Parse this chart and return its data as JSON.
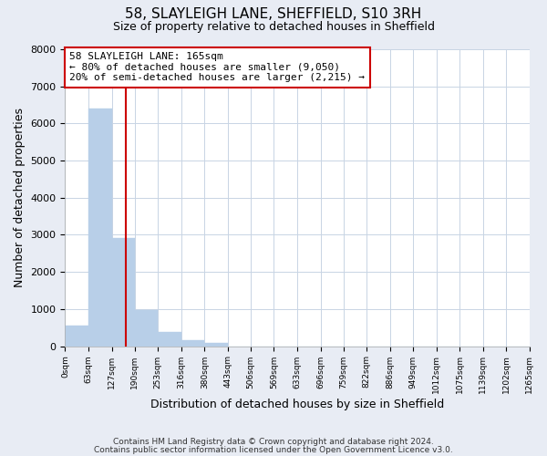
{
  "title": "58, SLAYLEIGH LANE, SHEFFIELD, S10 3RH",
  "subtitle": "Size of property relative to detached houses in Sheffield",
  "xlabel": "Distribution of detached houses by size in Sheffield",
  "ylabel": "Number of detached properties",
  "bar_edges": [
    0,
    63,
    127,
    190,
    253,
    316,
    380,
    443,
    506,
    569,
    633,
    696,
    759,
    822,
    886,
    949,
    1012,
    1075,
    1139,
    1202,
    1265
  ],
  "bar_heights": [
    550,
    6400,
    2920,
    970,
    380,
    170,
    80,
    0,
    0,
    0,
    0,
    0,
    0,
    0,
    0,
    0,
    0,
    0,
    0,
    0
  ],
  "bar_color": "#b8cfe8",
  "bar_edgecolor": "#b8cfe8",
  "property_line_x": 165,
  "property_line_color": "#cc0000",
  "annotation_line1": "58 SLAYLEIGH LANE: 165sqm",
  "annotation_line2": "← 80% of detached houses are smaller (9,050)",
  "annotation_line3": "20% of semi-detached houses are larger (2,215) →",
  "annotation_box_edgecolor": "#cc0000",
  "annotation_box_facecolor": "#ffffff",
  "ylim": [
    0,
    8000
  ],
  "xlim": [
    0,
    1265
  ],
  "tick_labels": [
    "0sqm",
    "63sqm",
    "127sqm",
    "190sqm",
    "253sqm",
    "316sqm",
    "380sqm",
    "443sqm",
    "506sqm",
    "569sqm",
    "633sqm",
    "696sqm",
    "759sqm",
    "822sqm",
    "886sqm",
    "949sqm",
    "1012sqm",
    "1075sqm",
    "1139sqm",
    "1202sqm",
    "1265sqm"
  ],
  "grid_color": "#c8d4e4",
  "bg_color": "#e8ecf4",
  "chart_bg": "#ffffff",
  "title_fontsize": 11,
  "subtitle_fontsize": 9,
  "footnote1": "Contains HM Land Registry data © Crown copyright and database right 2024.",
  "footnote2": "Contains public sector information licensed under the Open Government Licence v3.0."
}
